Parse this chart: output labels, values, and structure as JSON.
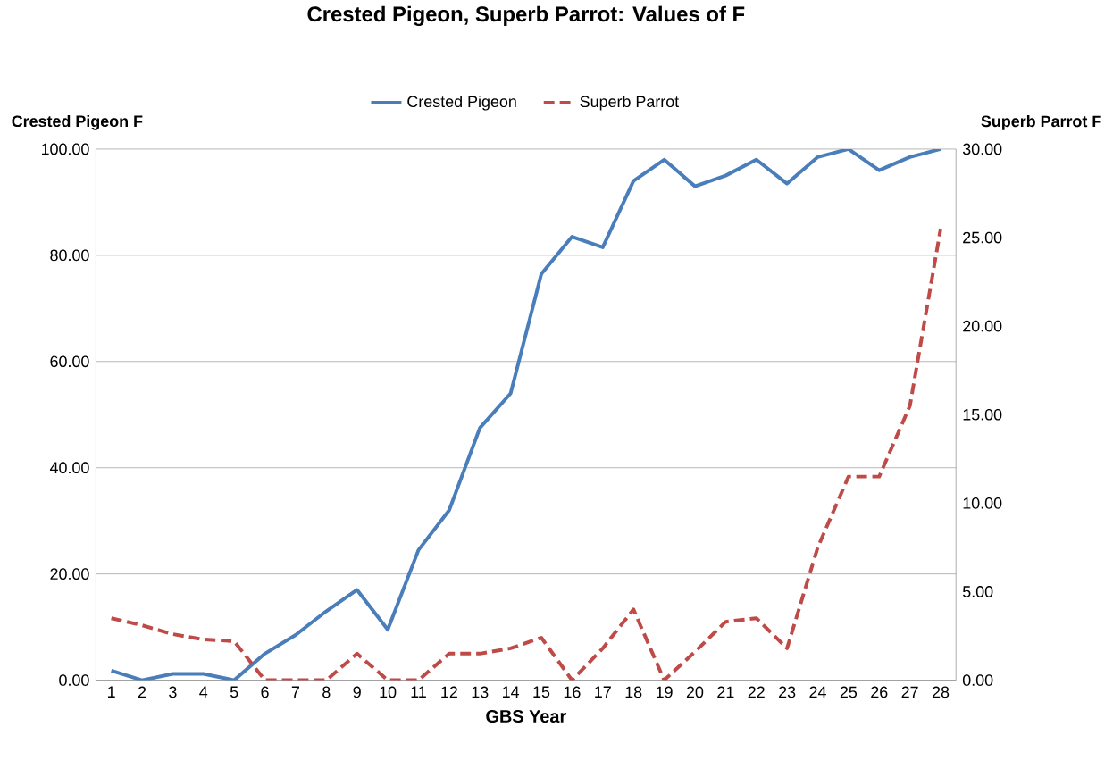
{
  "chart_data": {
    "type": "line",
    "title": "Crested Pigeon, Superb Parrot: Values of F",
    "xlabel": "GBS Year",
    "ylabel": "Crested Pigeon F",
    "y2label": "Superb Parrot F",
    "categories": [
      "1",
      "2",
      "3",
      "4",
      "5",
      "6",
      "7",
      "8",
      "9",
      "10",
      "11",
      "12",
      "13",
      "14",
      "15",
      "16",
      "17",
      "18",
      "19",
      "20",
      "21",
      "22",
      "23",
      "24",
      "25",
      "26",
      "27",
      "28"
    ],
    "series": [
      {
        "name": "Crested Pigeon",
        "color": "#4a7ebb",
        "line_style": "solid",
        "values": [
          1.8,
          0,
          1.2,
          1.2,
          0,
          5,
          8.5,
          13,
          17,
          9.5,
          24.5,
          32,
          47.5,
          54,
          76.5,
          83.5,
          81.5,
          94,
          98,
          93,
          95,
          98,
          93.5,
          98.5,
          100,
          96,
          98.5,
          100
        ]
      },
      {
        "name": "Superb Parrot",
        "color": "#be4b48",
        "line_style": "dashed",
        "axis": "y2",
        "values": [
          3.5,
          3.1,
          2.6,
          2.3,
          2.2,
          0,
          0,
          0,
          1.5,
          0,
          0,
          1.5,
          1.5,
          1.8,
          2.4,
          0,
          1.8,
          4,
          0,
          1.6,
          3.3,
          3.5,
          1.8,
          7.5,
          11.5,
          11.5,
          15.5,
          25.5
        ]
      }
    ],
    "ylim": [
      0,
      100
    ],
    "yticks": [
      {
        "value": 0,
        "label": "0.00"
      },
      {
        "value": 20,
        "label": "20.00"
      },
      {
        "value": 40,
        "label": "40.00"
      },
      {
        "value": 60,
        "label": "60.00"
      },
      {
        "value": 80,
        "label": "80.00"
      },
      {
        "value": 100,
        "label": "100.00"
      }
    ],
    "y2lim": [
      0,
      30
    ],
    "y2ticks": [
      {
        "value": 0,
        "label": "0.00"
      },
      {
        "value": 5,
        "label": "5.00"
      },
      {
        "value": 10,
        "label": "10.00"
      },
      {
        "value": 15,
        "label": "15.00"
      },
      {
        "value": 20,
        "label": "20.00"
      },
      {
        "value": 25,
        "label": "25.00"
      },
      {
        "value": 30,
        "label": "30.00"
      }
    ],
    "grid": "y",
    "legend": "top",
    "marker": "none"
  }
}
